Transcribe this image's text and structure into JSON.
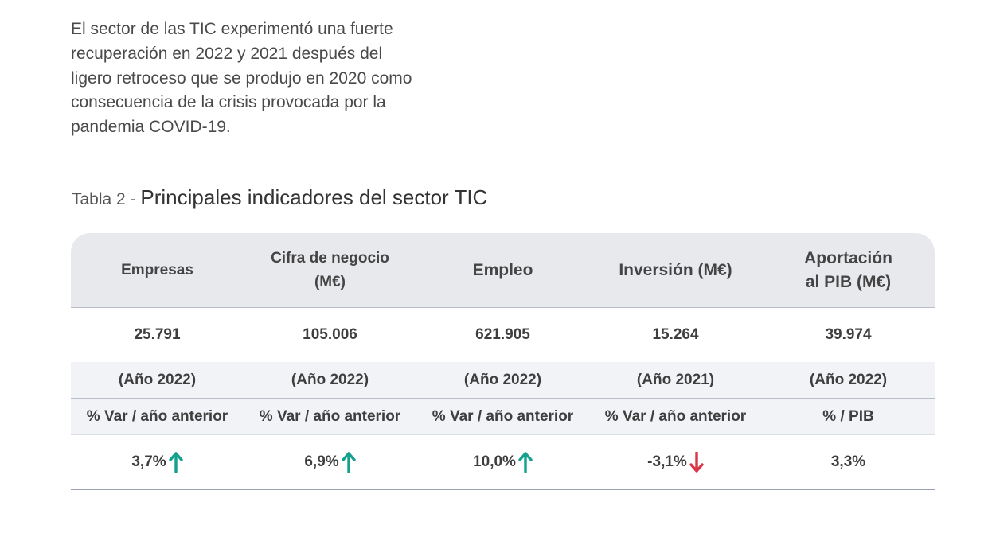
{
  "intro_text": "El sector de las TIC experimentó una fuerte\nrecuperación en 2022 y 2021 después del\nligero retroceso que se produjo en 2020 como\nconsecuencia de la crisis provocada por la\npandemia COVID-19.",
  "caption": {
    "prefix": "Tabla 2 - ",
    "title": "Principales indicadores del sector TIC"
  },
  "table": {
    "headers": [
      "Empresas",
      "Cifra de negocio\n(M€)",
      "Empleo",
      "Inversión (M€)",
      "Aportación\nal PIB (M€)"
    ],
    "values": [
      "25.791",
      "105.006",
      "621.905",
      "15.264",
      "39.974"
    ],
    "years": [
      "(Año 2022)",
      "(Año 2022)",
      "(Año 2022)",
      "(Año 2021)",
      "(Año 2022)"
    ],
    "var_labels": [
      "% Var / año anterior",
      "% Var / año anterior",
      "% Var / año anterior",
      "% Var / año anterior",
      "% / PIB"
    ],
    "changes": [
      {
        "value": "3,7%",
        "arrow": "arrow-up-icon"
      },
      {
        "value": "6,9%",
        "arrow": "arrow-up-icon"
      },
      {
        "value": "10,0%",
        "arrow": "arrow-up-icon"
      },
      {
        "value": "-3,1%",
        "arrow": "arrow-down-icon"
      },
      {
        "value": "3,3%",
        "arrow": ""
      }
    ]
  },
  "colors": {
    "up": "#13a08c",
    "down": "#d93646"
  }
}
